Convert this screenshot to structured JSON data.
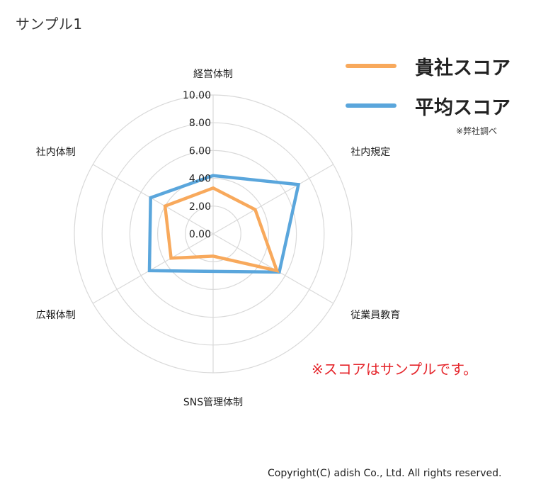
{
  "page_title": "サンプル1",
  "legend": {
    "items": [
      {
        "label": "貴社スコア",
        "color": "#f8a95c"
      },
      {
        "label": "平均スコア",
        "color": "#5aa6dc"
      }
    ],
    "note": "※弊社調べ"
  },
  "sample_note": "※スコアはサンプルです。",
  "copyright": "Copyright(C) adish Co., Ltd. All rights reserved.",
  "chart_data": {
    "type": "radar",
    "axes": [
      "経営体制",
      "社内規定",
      "従業員教育",
      "SNS管理体制",
      "広報体制",
      "社内体制"
    ],
    "tick_labels": [
      "0.00",
      "2.00",
      "4.00",
      "6.00",
      "8.00",
      "10.00"
    ],
    "range": [
      0,
      10
    ],
    "grid": true,
    "legend_position": "top-right",
    "series": [
      {
        "name": "貴社スコア",
        "color": "#f8a95c",
        "values": [
          3.3,
          3.5,
          5.3,
          1.6,
          3.5,
          4.0
        ]
      },
      {
        "name": "平均スコア",
        "color": "#5aa6dc",
        "values": [
          4.2,
          7.1,
          5.5,
          2.7,
          5.3,
          5.2
        ]
      }
    ]
  }
}
